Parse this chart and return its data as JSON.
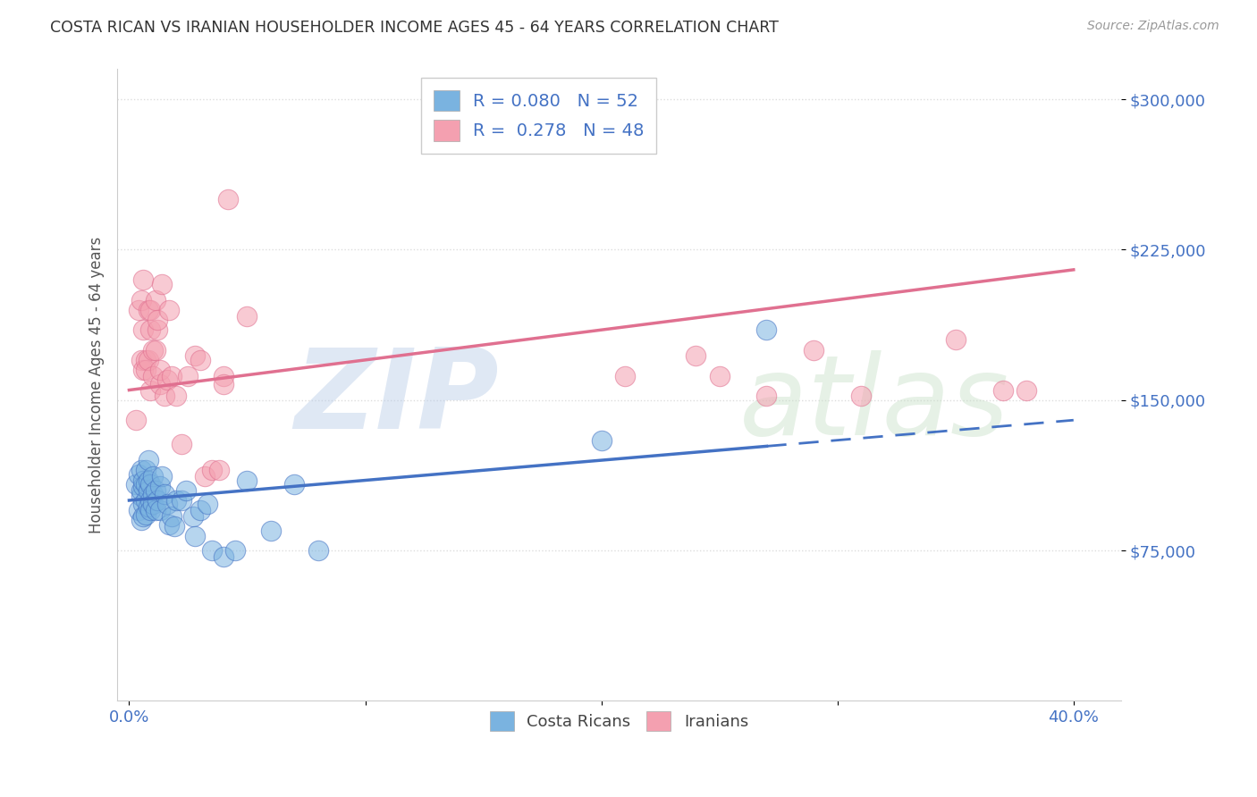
{
  "title": "COSTA RICAN VS IRANIAN HOUSEHOLDER INCOME AGES 45 - 64 YEARS CORRELATION CHART",
  "source": "Source: ZipAtlas.com",
  "ylabel": "Householder Income Ages 45 - 64 years",
  "xlim": [
    0.0,
    0.42
  ],
  "ylim": [
    0,
    315000
  ],
  "yticks": [
    75000,
    150000,
    225000,
    300000
  ],
  "ytick_labels": [
    "$75,000",
    "$150,000",
    "$225,000",
    "$300,000"
  ],
  "xticks": [
    0.0,
    0.1,
    0.2,
    0.3,
    0.4
  ],
  "xtick_labels": [
    "0.0%",
    "",
    "",
    "",
    "40.0%"
  ],
  "background_color": "#ffffff",
  "grid_color": "#dddddd",
  "costa_rican_color": "#7ab3e0",
  "iranian_color": "#f4a0b0",
  "costa_rican_line_color": "#4472c4",
  "iranian_line_color": "#e07090",
  "costa_rican_R": 0.08,
  "costa_rican_N": 52,
  "iranian_R": 0.278,
  "iranian_N": 48,
  "legend_text_color": "#4472c4",
  "title_color": "#333333",
  "costa_rican_line_y0": 100000,
  "costa_rican_line_y1": 140000,
  "iranian_line_y0": 155000,
  "iranian_line_y1": 215000,
  "cr_points_x": [
    0.003,
    0.004,
    0.004,
    0.005,
    0.005,
    0.005,
    0.005,
    0.006,
    0.006,
    0.006,
    0.006,
    0.007,
    0.007,
    0.007,
    0.007,
    0.008,
    0.008,
    0.008,
    0.008,
    0.009,
    0.009,
    0.009,
    0.01,
    0.01,
    0.01,
    0.011,
    0.011,
    0.012,
    0.013,
    0.013,
    0.014,
    0.015,
    0.016,
    0.017,
    0.018,
    0.019,
    0.02,
    0.022,
    0.024,
    0.027,
    0.028,
    0.03,
    0.033,
    0.035,
    0.04,
    0.045,
    0.05,
    0.06,
    0.07,
    0.08,
    0.2,
    0.27
  ],
  "cr_points_y": [
    108000,
    95000,
    113000,
    102000,
    90000,
    105000,
    115000,
    98000,
    107000,
    92000,
    110000,
    100000,
    93000,
    108000,
    115000,
    105000,
    97000,
    110000,
    120000,
    100000,
    95000,
    108000,
    103000,
    98000,
    112000,
    105000,
    95000,
    100000,
    107000,
    95000,
    112000,
    103000,
    98000,
    88000,
    92000,
    87000,
    100000,
    100000,
    105000,
    92000,
    82000,
    95000,
    98000,
    75000,
    72000,
    75000,
    110000,
    85000,
    108000,
    75000,
    130000,
    185000
  ],
  "ir_points_x": [
    0.003,
    0.004,
    0.005,
    0.005,
    0.006,
    0.006,
    0.006,
    0.007,
    0.007,
    0.008,
    0.008,
    0.009,
    0.009,
    0.009,
    0.01,
    0.01,
    0.011,
    0.011,
    0.012,
    0.012,
    0.013,
    0.013,
    0.014,
    0.015,
    0.016,
    0.017,
    0.018,
    0.02,
    0.022,
    0.025,
    0.028,
    0.03,
    0.032,
    0.035,
    0.038,
    0.04,
    0.042,
    0.21,
    0.24,
    0.25,
    0.27,
    0.29,
    0.31,
    0.35,
    0.37,
    0.38,
    0.04,
    0.05
  ],
  "ir_points_y": [
    140000,
    195000,
    200000,
    170000,
    185000,
    165000,
    210000,
    170000,
    165000,
    195000,
    170000,
    185000,
    195000,
    155000,
    175000,
    162000,
    200000,
    175000,
    185000,
    190000,
    158000,
    165000,
    208000,
    152000,
    160000,
    195000,
    162000,
    152000,
    128000,
    162000,
    172000,
    170000,
    112000,
    115000,
    115000,
    162000,
    250000,
    162000,
    172000,
    162000,
    152000,
    175000,
    152000,
    180000,
    155000,
    155000,
    158000,
    192000
  ]
}
